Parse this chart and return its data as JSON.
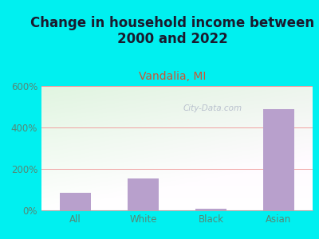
{
  "title": "Change in household income between\n2000 and 2022",
  "subtitle": "Vandalia, MI",
  "categories": [
    "All",
    "White",
    "Black",
    "Asian"
  ],
  "values": [
    85,
    155,
    8,
    490
  ],
  "bar_color": "#b8a0cc",
  "title_fontsize": 12,
  "title_color": "#1a1a2e",
  "subtitle_fontsize": 10,
  "subtitle_color": "#cc5533",
  "tick_label_color": "#558877",
  "ylim": [
    0,
    600
  ],
  "ytick_labels": [
    "0%",
    "200%",
    "400%",
    "600%"
  ],
  "background_outer": "#00f0f0",
  "grid_color": "#f0a0a0",
  "watermark": "City-Data.com"
}
